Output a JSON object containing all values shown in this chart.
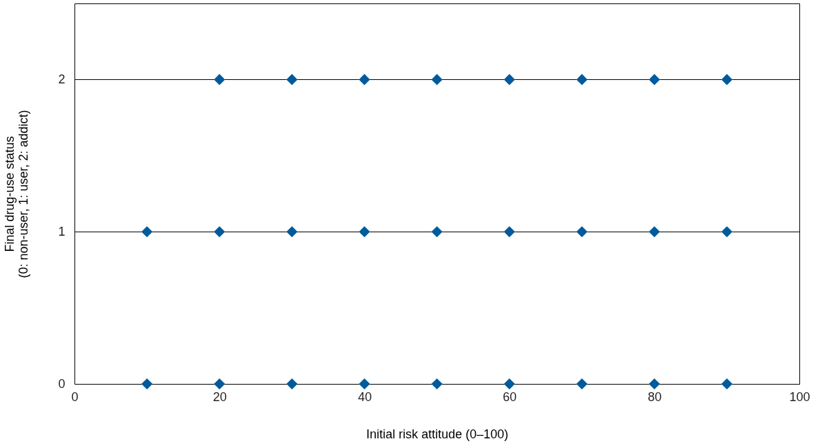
{
  "chart_data": {
    "type": "scatter",
    "xlabel": "Initial risk attitude (0–100)",
    "ylabel": "Final drug-use status\n(0: non-user, 1: user, 2: addict)",
    "x": [
      10,
      20,
      30,
      40,
      50,
      60,
      70,
      80,
      90,
      10,
      20,
      30,
      40,
      50,
      60,
      70,
      80,
      90,
      20,
      30,
      40,
      50,
      60,
      70,
      80,
      90
    ],
    "series": [
      {
        "color": "#005a9c",
        "values": [
          0,
          0,
          0,
          0,
          0,
          0,
          0,
          0,
          0,
          1,
          1,
          1,
          1,
          1,
          1,
          1,
          1,
          1,
          2,
          2,
          2,
          2,
          2,
          2,
          2,
          2
        ]
      }
    ],
    "xlim": [
      0,
      100
    ],
    "xticks": [
      0,
      20,
      40,
      60,
      80,
      100
    ],
    "ylim": [
      0,
      2.5
    ],
    "yticks": [
      0,
      1,
      2
    ],
    "grid": "y",
    "marker": "diamond"
  }
}
